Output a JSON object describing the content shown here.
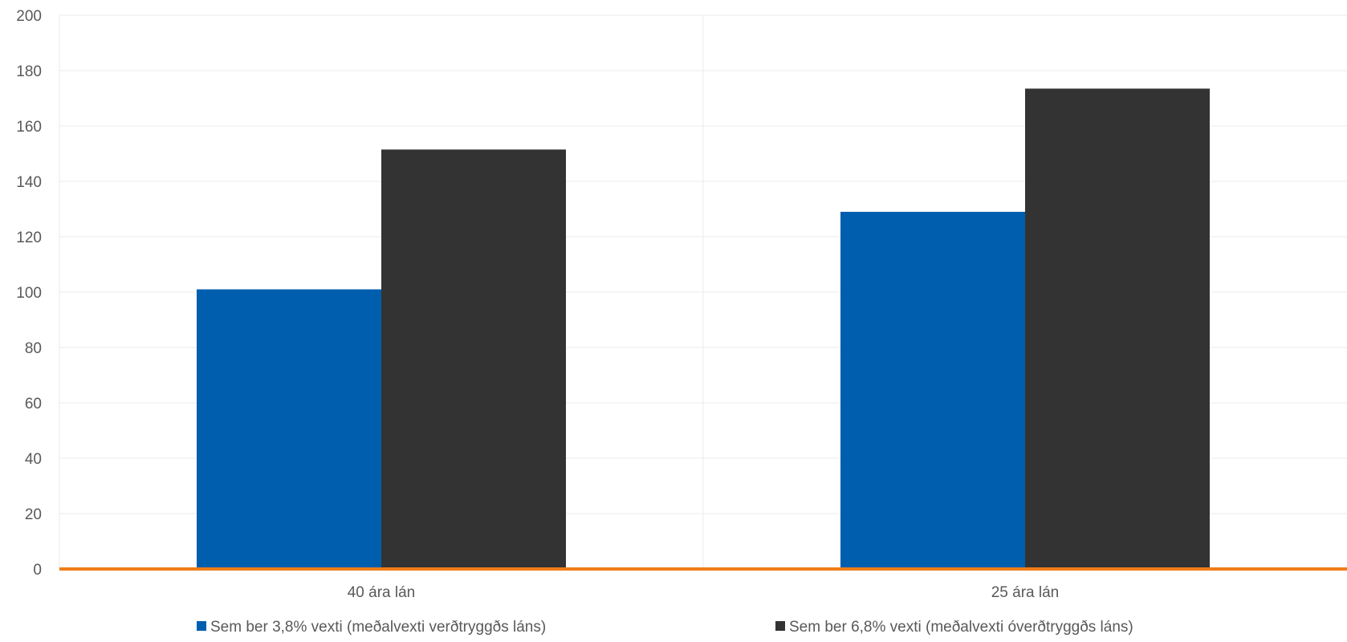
{
  "chart_data": {
    "type": "bar",
    "categories": [
      "40 ára lán",
      "25 ára lán"
    ],
    "series": [
      {
        "name": "Sem ber 3,8% vexti (meðalvexti verðtryggðs láns)",
        "values": [
          101,
          129
        ],
        "color": "#005EAF"
      },
      {
        "name": "Sem ber 6,8% vexti (meðalvexti óverðtryggðs láns)",
        "values": [
          151.5,
          173.5
        ],
        "color": "#333333"
      }
    ],
    "ylim": [
      0,
      200
    ],
    "yticks": [
      0,
      20,
      40,
      60,
      80,
      100,
      120,
      140,
      160,
      180,
      200
    ],
    "grid": true,
    "baseline_color": "#F07D19",
    "legend_position": "bottom"
  }
}
